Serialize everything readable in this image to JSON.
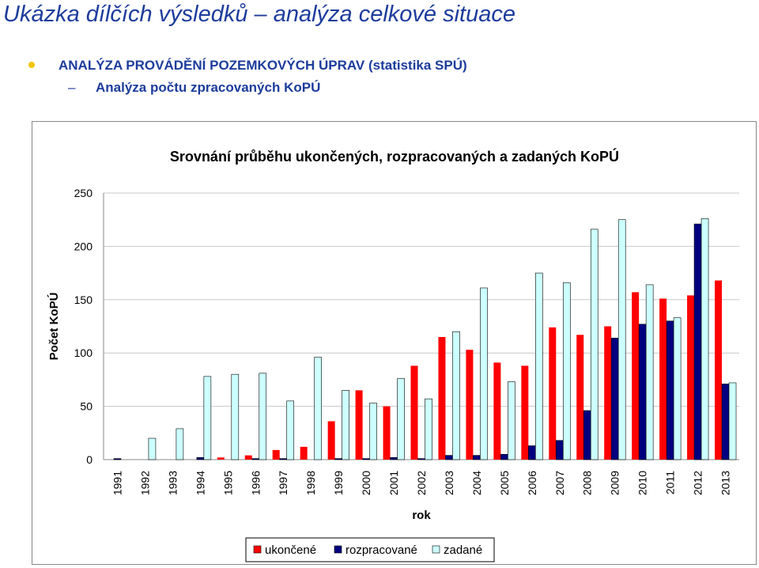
{
  "slide": {
    "title": "Ukázka dílčích výsledků – analýza celkové situace",
    "bullet": "ANALÝZA PROVÁDĚNÍ POZEMKOVÝCH ÚPRAV (statistika SPÚ)",
    "sub_dash": "–",
    "sub_bullet": "Analýza počtu zpracovaných KoPÚ"
  },
  "colors": {
    "title": "#1c3c9c",
    "bullet_dot": "#f2c400",
    "ukoncene": "#ff0000",
    "rozpracovane": "#00007f",
    "zadane": "#ccffff"
  },
  "chart_data": {
    "type": "bar",
    "title": "Srovnání průběhu ukončených, rozpracovaných a zadaných KoPÚ",
    "xlabel": "rok",
    "ylabel": "Počet KoPÚ",
    "ylim": [
      0,
      250
    ],
    "yticks": [
      0,
      50,
      100,
      150,
      200,
      250
    ],
    "grid": true,
    "legend": "bottom",
    "categories": [
      "1991",
      "1992",
      "1993",
      "1994",
      "1995",
      "1996",
      "1997",
      "1998",
      "1999",
      "2000",
      "2001",
      "2002",
      "2003",
      "2004",
      "2005",
      "2006",
      "2007",
      "2008",
      "2009",
      "2010",
      "2011",
      "2012",
      "2013"
    ],
    "series": [
      {
        "name": "ukončené",
        "color": "#ff0000",
        "values": [
          0,
          0,
          0,
          0,
          2,
          4,
          9,
          12,
          36,
          65,
          50,
          88,
          115,
          103,
          91,
          88,
          124,
          117,
          125,
          157,
          151,
          154,
          168
        ]
      },
      {
        "name": "rozpracované",
        "color": "#00007f",
        "values": [
          1,
          0,
          0,
          2,
          0,
          1,
          1,
          0,
          1,
          1,
          2,
          1,
          4,
          4,
          5,
          13,
          18,
          46,
          114,
          127,
          130,
          221,
          71
        ]
      },
      {
        "name": "zadané",
        "color": "#ccffff",
        "values": [
          0,
          20,
          29,
          78,
          80,
          81,
          55,
          96,
          65,
          53,
          76,
          57,
          120,
          161,
          73,
          175,
          166,
          216,
          225,
          164,
          133,
          226,
          72
        ]
      }
    ]
  }
}
